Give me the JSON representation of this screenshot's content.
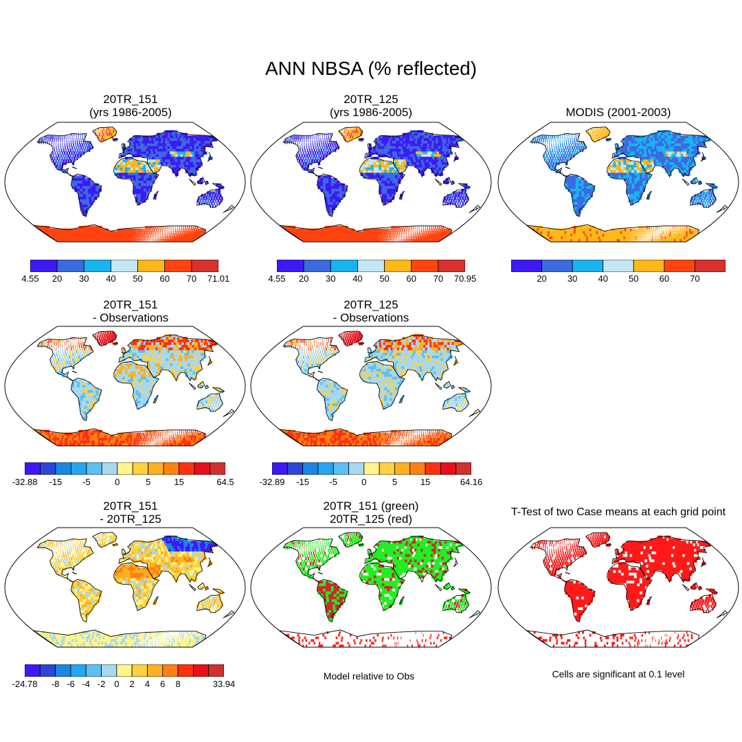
{
  "title": "ANN NBSA (% reflected)",
  "panels": [
    {
      "title": "20TR_151\n(yrs 1986-2005)",
      "palette": "abs",
      "pattern": "abs151"
    },
    {
      "title": "20TR_125\n(yrs 1986-2005)",
      "palette": "abs",
      "pattern": "abs125"
    },
    {
      "title": "MODIS (2001-2003)",
      "palette": "abs",
      "pattern": "modis"
    },
    {
      "title": "20TR_151\n- Observations",
      "palette": "diff",
      "pattern": "diff151"
    },
    {
      "title": "20TR_125\n- Observations",
      "palette": "diff",
      "pattern": "diff125"
    },
    {
      "title": "20TR_151\n- 20TR_125",
      "palette": "mdiff",
      "pattern": "mdiff"
    },
    {
      "title": "20TR_151 (green)\n20TR_125 (red)",
      "palette": "rg",
      "pattern": "rg"
    },
    {
      "title": "T-Test of two Case means at each grid point",
      "palette": "ttest",
      "pattern": "ttest"
    }
  ],
  "colorbars": [
    {
      "colors": [
        "#3d1af5",
        "#3c6ae0",
        "#19b4f0",
        "#c4e6f5",
        "#ffb81a",
        "#ff4410",
        "#d8302c"
      ],
      "labels": [
        "4.55",
        "20",
        "30",
        "40",
        "50",
        "60",
        "70",
        "71.01"
      ]
    },
    {
      "colors": [
        "#3d1af5",
        "#3c6ae0",
        "#19b4f0",
        "#c4e6f5",
        "#ffb81a",
        "#ff4410",
        "#d8302c"
      ],
      "labels": [
        "4.55",
        "20",
        "30",
        "40",
        "50",
        "60",
        "70",
        "70.95"
      ]
    },
    {
      "colors": [
        "#3d1af5",
        "#3c6ae0",
        "#19b4f0",
        "#c4e6f5",
        "#ffb81a",
        "#ff4410",
        "#d8302c"
      ],
      "labels": [
        "",
        "20",
        "30",
        "40",
        "50",
        "60",
        "70",
        ""
      ]
    },
    {
      "colors": [
        "#3d1af5",
        "#2d45d8",
        "#1a86e6",
        "#25a6ee",
        "#5dc0f0",
        "#a8d8f0",
        "#fff58a",
        "#ffd040",
        "#ffb020",
        "#ff8010",
        "#ff3010",
        "#e8101a",
        "#d03030"
      ],
      "labels": [
        "-32.88",
        "",
        "-15",
        "",
        "-5",
        "",
        "0",
        "",
        "5",
        "",
        "15",
        "",
        "",
        "64.5"
      ]
    },
    {
      "colors": [
        "#3d1af5",
        "#2d45d8",
        "#1a86e6",
        "#25a6ee",
        "#5dc0f0",
        "#a8d8f0",
        "#fff58a",
        "#ffd040",
        "#ffb020",
        "#ff8010",
        "#ff3010",
        "#e8101a",
        "#d03030"
      ],
      "labels": [
        "-32.89",
        "",
        "-15",
        "",
        "-5",
        "",
        "0",
        "",
        "5",
        "",
        "15",
        "",
        "",
        "64.16"
      ]
    },
    {
      "colors": [
        "#3d1af5",
        "#2d45d8",
        "#1a86e6",
        "#25a6ee",
        "#5dc0f0",
        "#a8d8f0",
        "#fff58a",
        "#ffd040",
        "#ffb020",
        "#ff8010",
        "#ff3010",
        "#e8101a",
        "#d03030"
      ],
      "labels": [
        "-24.78",
        "",
        "-8",
        "-6",
        "-4",
        "-2",
        "0",
        "2",
        "4",
        "6",
        "8",
        "",
        "",
        "33.94"
      ]
    }
  ],
  "captions": {
    "model_relative": "Model relative to Obs",
    "significance": "Cells are significant at 0.1 level"
  }
}
